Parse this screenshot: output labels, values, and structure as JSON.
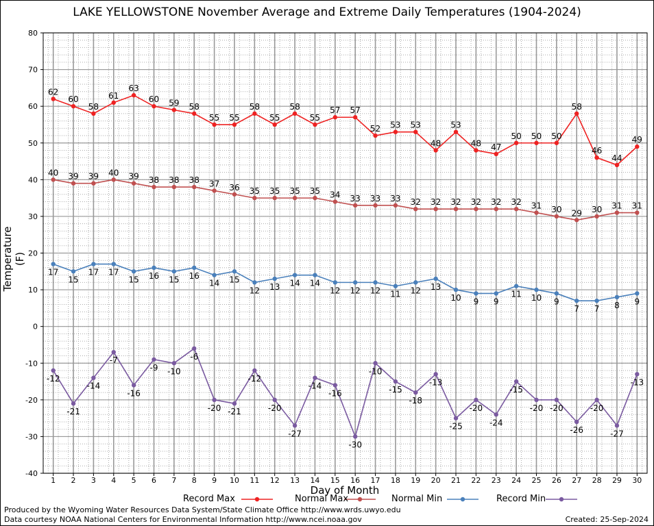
{
  "chart_data": {
    "type": "line",
    "title": "LAKE YELLOWSTONE November Average and Extreme Daily Temperatures (1904-2024)",
    "xlabel": "Day of Month",
    "ylabel": "Temperature (F)",
    "ylim": [
      -40,
      80
    ],
    "yticks": [
      -40,
      -30,
      -20,
      -10,
      0,
      10,
      20,
      30,
      40,
      50,
      60,
      70,
      80
    ],
    "x": [
      1,
      2,
      3,
      4,
      5,
      6,
      7,
      8,
      9,
      10,
      11,
      12,
      13,
      14,
      15,
      16,
      17,
      18,
      19,
      20,
      21,
      22,
      23,
      24,
      25,
      26,
      27,
      28,
      29,
      30
    ],
    "grid": true,
    "legend_position": "bottom",
    "series": [
      {
        "name": "Record Max",
        "color": "#ee2222",
        "label_pos": "above",
        "values": [
          62,
          60,
          58,
          61,
          63,
          60,
          59,
          58,
          55,
          55,
          58,
          55,
          58,
          55,
          57,
          57,
          52,
          53,
          53,
          48,
          53,
          48,
          47,
          50,
          50,
          50,
          58,
          46,
          44,
          49
        ]
      },
      {
        "name": "Normal Max",
        "color": "#c05050",
        "label_pos": "above",
        "values": [
          40,
          39,
          39,
          40,
          39,
          38,
          38,
          38,
          37,
          36,
          35,
          35,
          35,
          35,
          34,
          33,
          33,
          33,
          32,
          32,
          32,
          32,
          32,
          32,
          31,
          30,
          29,
          30,
          31,
          31
        ]
      },
      {
        "name": "Normal Min",
        "color": "#4a80bb",
        "label_pos": "below",
        "values": [
          17,
          15,
          17,
          17,
          15,
          16,
          15,
          16,
          14,
          15,
          12,
          13,
          14,
          14,
          12,
          12,
          12,
          11,
          12,
          13,
          10,
          9,
          9,
          11,
          10,
          9,
          7,
          7,
          8,
          9
        ]
      },
      {
        "name": "Record Min",
        "color": "#7a5aa0",
        "label_pos": "below",
        "values": [
          -12,
          -21,
          -14,
          -7,
          -16,
          -9,
          -10,
          -6,
          -20,
          -21,
          -12,
          -20,
          -27,
          -14,
          -16,
          -30,
          -10,
          -15,
          -18,
          -13,
          -25,
          -20,
          -24,
          -15,
          -20,
          -20,
          -26,
          -20,
          -27,
          -13
        ]
      }
    ]
  },
  "footer": {
    "credit_1": "Produced by the Wyoming Water Resources Data System/State Climate Office http://www.wrds.uwyo.edu",
    "credit_2": "Data courtesy NOAA National Centers for Environmental Information http://www.ncei.noaa.gov",
    "created": "Created:  25-Sep-2024"
  }
}
